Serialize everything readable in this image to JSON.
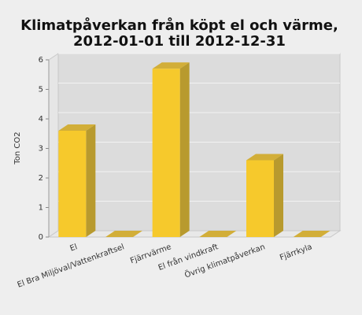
{
  "chart_data": {
    "type": "bar3d",
    "title": [
      "Klimatpåverkan från köpt el och värme,",
      "2012-01-01 till 2012-12-31"
    ],
    "y_label": "Ton CO2",
    "categories": [
      "El",
      "El Bra Miljöval/Vattenkraftsel",
      "Fjärrvärme",
      "El från vindkraft",
      "Övrig klimatpåverkan",
      "Fjärrkyla"
    ],
    "values": [
      3.6,
      0,
      5.7,
      0,
      2.6,
      0
    ],
    "color": "#f6c92c",
    "ylim": [
      0,
      6
    ],
    "yticks": [
      0,
      1,
      2,
      3,
      4,
      5,
      6
    ],
    "grid": true
  }
}
